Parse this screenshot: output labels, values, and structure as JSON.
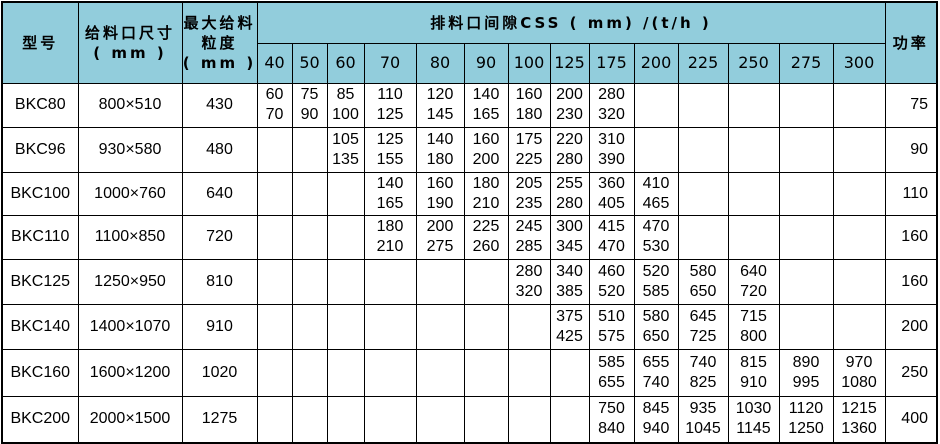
{
  "header": {
    "model": "型号",
    "feed_opening": "给料口尺寸",
    "feed_opening_unit": "( mm )",
    "max_feed": "最大给料粒度",
    "max_feed_unit": "( mm )",
    "css_title": "排料口间隙CSS ( mm) /(t/h )",
    "power": "功率"
  },
  "css_values": [
    "40",
    "50",
    "60",
    "70",
    "80",
    "90",
    "100",
    "125",
    "175",
    "200",
    "225",
    "250",
    "275",
    "300"
  ],
  "header_color": "#92cddc",
  "rows": [
    {
      "model": "BKC80",
      "opening": "800×510",
      "max_feed": "430",
      "power": "75",
      "cells": [
        [
          "60",
          "70"
        ],
        [
          "75",
          "90"
        ],
        [
          "85",
          "100"
        ],
        [
          "110",
          "125"
        ],
        [
          "120",
          "145"
        ],
        [
          "140",
          "165"
        ],
        [
          "160",
          "180"
        ],
        [
          "200",
          "230"
        ],
        [
          "280",
          "320"
        ],
        null,
        null,
        null,
        null,
        null
      ]
    },
    {
      "model": "BKC96",
      "opening": "930×580",
      "max_feed": "480",
      "power": "90",
      "cells": [
        null,
        null,
        [
          "105",
          "135"
        ],
        [
          "125",
          "155"
        ],
        [
          "140",
          "180"
        ],
        [
          "160",
          "200"
        ],
        [
          "175",
          "225"
        ],
        [
          "220",
          "280"
        ],
        [
          "310",
          "390"
        ],
        null,
        null,
        null,
        null,
        null
      ]
    },
    {
      "model": "BKC100",
      "opening": "1000×760",
      "max_feed": "640",
      "power": "110",
      "cells": [
        null,
        null,
        null,
        [
          "140",
          "165"
        ],
        [
          "160",
          "190"
        ],
        [
          "180",
          "210"
        ],
        [
          "205",
          "235"
        ],
        [
          "255",
          "280"
        ],
        [
          "360",
          "405"
        ],
        [
          "410",
          "465"
        ],
        null,
        null,
        null,
        null
      ]
    },
    {
      "model": "BKC110",
      "opening": "1100×850",
      "max_feed": "720",
      "power": "160",
      "cells": [
        null,
        null,
        null,
        [
          "180",
          "210"
        ],
        [
          "200",
          "275"
        ],
        [
          "225",
          "260"
        ],
        [
          "245",
          "285"
        ],
        [
          "300",
          "345"
        ],
        [
          "415",
          "470"
        ],
        [
          "470",
          "530"
        ],
        null,
        null,
        null,
        null
      ]
    },
    {
      "model": "BKC125",
      "opening": "1250×950",
      "max_feed": "810",
      "power": "160",
      "cells": [
        null,
        null,
        null,
        null,
        null,
        null,
        [
          "280",
          "320"
        ],
        [
          "340",
          "385"
        ],
        [
          "460",
          "520"
        ],
        [
          "520",
          "585"
        ],
        [
          "580",
          "650"
        ],
        [
          "640",
          "720"
        ],
        null,
        null
      ]
    },
    {
      "model": "BKC140",
      "opening": "1400×1070",
      "max_feed": "910",
      "power": "200",
      "cells": [
        null,
        null,
        null,
        null,
        null,
        null,
        null,
        [
          "375",
          "425"
        ],
        [
          "510",
          "575"
        ],
        [
          "580",
          "650"
        ],
        [
          "645",
          "725"
        ],
        [
          "715",
          "800"
        ],
        null,
        null
      ]
    },
    {
      "model": "BKC160",
      "opening": "1600×1200",
      "max_feed": "1020",
      "power": "250",
      "cells": [
        null,
        null,
        null,
        null,
        null,
        null,
        null,
        null,
        [
          "585",
          "655"
        ],
        [
          "655",
          "740"
        ],
        [
          "740",
          "825"
        ],
        [
          "815",
          "910"
        ],
        [
          "890",
          "995"
        ],
        [
          "970",
          "1080"
        ]
      ]
    },
    {
      "model": "BKC200",
      "opening": "2000×1500",
      "max_feed": "1275",
      "power": "400",
      "cells": [
        null,
        null,
        null,
        null,
        null,
        null,
        null,
        null,
        [
          "750",
          "840"
        ],
        [
          "845",
          "940"
        ],
        [
          "935",
          "1045"
        ],
        [
          "1030",
          "1145"
        ],
        [
          "1120",
          "1250"
        ],
        [
          "1215",
          "1360"
        ]
      ]
    }
  ]
}
